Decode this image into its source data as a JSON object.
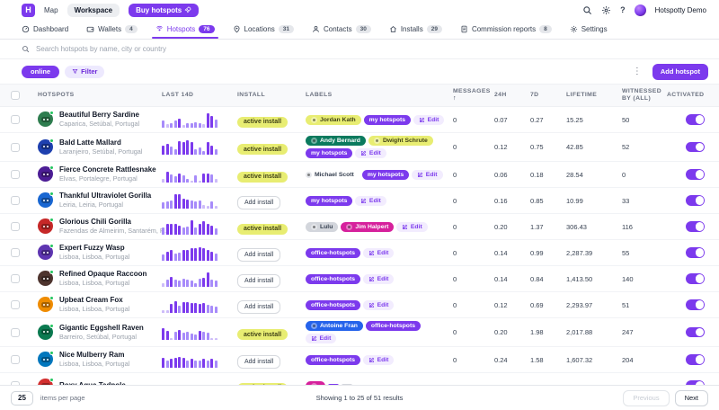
{
  "topbar": {
    "logo": "H",
    "map": "Map",
    "workspace": "Workspace",
    "buy_hotspots": "Buy hotspots",
    "user": "Hotspotty Demo",
    "help": "?"
  },
  "nav": {
    "items": [
      {
        "label": "Dashboard",
        "icon": "dashboard-icon",
        "badge": null,
        "active": false
      },
      {
        "label": "Wallets",
        "icon": "wallet-icon",
        "badge": "4",
        "active": false
      },
      {
        "label": "Hotspots",
        "icon": "hotspot-icon",
        "badge": "76",
        "active": true
      },
      {
        "label": "Locations",
        "icon": "location-icon",
        "badge": "31",
        "active": false
      },
      {
        "label": "Contacts",
        "icon": "contact-icon",
        "badge": "30",
        "active": false
      },
      {
        "label": "Installs",
        "icon": "install-icon",
        "badge": "29",
        "active": false
      },
      {
        "label": "Commission reports",
        "icon": "report-icon",
        "badge": "8",
        "active": false
      },
      {
        "label": "Settings",
        "icon": "settings-icon",
        "badge": null,
        "active": false
      }
    ]
  },
  "search": {
    "placeholder": "Search hotspots by name, city or country"
  },
  "filters": {
    "online_label": "online",
    "filter_label": "Filter",
    "add_hotspot_label": "Add hotspot",
    "kebab": "⋮"
  },
  "table": {
    "columns": [
      "HOTSPOTS",
      "LAST 14D",
      "INSTALL",
      "LABELS",
      "MESSAGES",
      "24H",
      "7D",
      "LIFETIME",
      "WITNESSED BY (ALL)",
      "ACTIVATED"
    ],
    "sort_column": "MESSAGES",
    "sort_arrow": "↑",
    "edit_label": "Edit",
    "install_active_label": "active install",
    "install_add_label": "Add install",
    "rows": [
      {
        "name": "Beautiful Berry Sardine",
        "location": "Caparica, Setúbal, Portugal",
        "avatar_color": "#2e7d4f",
        "bars": [
          0.45,
          0.2,
          0.3,
          0.45,
          0.62,
          0.15,
          0.3,
          0.28,
          0.35,
          0.3,
          0.2,
          1,
          0.8,
          0.55
        ],
        "install": "active",
        "labels": [
          {
            "text": "Jordan Kath",
            "color": "yellow",
            "contact": true
          },
          {
            "text": "my hotspots",
            "color": "purple",
            "contact": false
          }
        ],
        "edit": true,
        "messages": "0",
        "h24": "0.07",
        "d7": "0.27",
        "lifetime": "15.25",
        "witnessed": "50",
        "activated": true
      },
      {
        "name": "Bald Latte Mallard",
        "location": "Laranjeiro, Setúbal, Portugal",
        "avatar_color": "#1e40af",
        "bars": [
          0.65,
          0.75,
          0.55,
          0.4,
          0.95,
          0.9,
          1,
          0.9,
          0.35,
          0.5,
          0.25,
          0.85,
          0.6,
          0.35
        ],
        "install": "active",
        "labels": [
          {
            "text": "Andy Bernard",
            "color": "green",
            "contact": true
          },
          {
            "text": "Dwight Schrute",
            "color": "yellow",
            "contact": true
          },
          {
            "text": "my hotspots",
            "color": "purple",
            "contact": false
          }
        ],
        "edit": true,
        "messages": "0",
        "h24": "0.12",
        "d7": "0.75",
        "lifetime": "42.85",
        "witnessed": "52",
        "activated": true
      },
      {
        "name": "Fierce Concrete Rattlesnake",
        "location": "Elvas, Portalegre, Portugal",
        "avatar_color": "#4c1d95",
        "bars": [
          0.2,
          0.7,
          0.55,
          0.4,
          0.6,
          0.45,
          0.25,
          0.1,
          0.45,
          0.1,
          0.6,
          0.6,
          0.55,
          0.2
        ],
        "install": "active",
        "labels": [
          {
            "text": "Michael Scott",
            "color": "plain",
            "contact": true
          },
          {
            "text": "my hotspots",
            "color": "purple",
            "contact": false
          }
        ],
        "edit": true,
        "messages": "0",
        "h24": "0.06",
        "d7": "0.18",
        "lifetime": "28.54",
        "witnessed": "0",
        "activated": true
      },
      {
        "name": "Thankful Ultraviolet Gorilla",
        "location": "Leiria, Leiria, Portugal",
        "avatar_color": "#1967d2",
        "bars": [
          0.4,
          0.45,
          0.55,
          1,
          0.95,
          0.65,
          0.6,
          0.55,
          0.5,
          0.55,
          0.2,
          0.15,
          0.5,
          0.15
        ],
        "install": "add",
        "labels": [
          {
            "text": "my hotspots",
            "color": "purple",
            "contact": false
          }
        ],
        "edit": true,
        "messages": "0",
        "h24": "0.16",
        "d7": "0.85",
        "lifetime": "10.99",
        "witnessed": "33",
        "activated": true
      },
      {
        "name": "Glorious Chili Gorilla",
        "location": "Fazendas de Almeirim, Santarém, P...",
        "avatar_color": "#c62828",
        "bars": [
          0.45,
          0.75,
          0.75,
          0.7,
          0.6,
          0.45,
          0.55,
          1,
          0.45,
          0.75,
          0.9,
          0.75,
          0.6,
          0.4
        ],
        "install": "active",
        "labels": [
          {
            "text": "Lulu",
            "color": "gray",
            "contact": true
          },
          {
            "text": "Jim Halpert",
            "color": "pink",
            "contact": true
          }
        ],
        "edit": true,
        "messages": "0",
        "h24": "0.20",
        "d7": "1.37",
        "lifetime": "306.43",
        "witnessed": "116",
        "activated": true
      },
      {
        "name": "Expert Fuzzy Wasp",
        "location": "Lisboa, Lisboa, Portugal",
        "avatar_color": "#5e35b1",
        "bars": [
          0.4,
          0.6,
          0.75,
          0.45,
          0.55,
          0.75,
          0.75,
          0.85,
          0.85,
          0.9,
          0.85,
          0.75,
          0.6,
          0.45
        ],
        "install": "add",
        "labels": [
          {
            "text": "office-hotspots",
            "color": "purple",
            "contact": false
          }
        ],
        "edit": true,
        "messages": "0",
        "h24": "0.14",
        "d7": "0.99",
        "lifetime": "2,287.39",
        "witnessed": "55",
        "activated": true
      },
      {
        "name": "Refined Opaque Raccoon",
        "location": "Lisboa, Lisboa, Portugal",
        "avatar_color": "#4e342e",
        "bars": [
          0.2,
          0.5,
          0.65,
          0.45,
          0.4,
          0.55,
          0.5,
          0.4,
          0.25,
          0.55,
          0.6,
          1,
          0.5,
          0.4
        ],
        "install": "add",
        "labels": [
          {
            "text": "office-hotspots",
            "color": "purple",
            "contact": false
          }
        ],
        "edit": true,
        "messages": "0",
        "h24": "0.14",
        "d7": "0.84",
        "lifetime": "1,413.50",
        "witnessed": "140",
        "activated": true
      },
      {
        "name": "Upbeat Cream Fox",
        "location": "Lisboa, Lisboa, Portugal",
        "avatar_color": "#ef8c00",
        "bars": [
          0.15,
          0.15,
          0.6,
          0.8,
          0.5,
          0.7,
          0.7,
          0.65,
          0.65,
          0.6,
          0.65,
          0.55,
          0.5,
          0.4
        ],
        "install": "add",
        "labels": [
          {
            "text": "office-hotspots",
            "color": "purple",
            "contact": false
          }
        ],
        "edit": true,
        "messages": "0",
        "h24": "0.12",
        "d7": "0.69",
        "lifetime": "2,293.97",
        "witnessed": "51",
        "activated": true
      },
      {
        "name": "Gigantic Eggshell Raven",
        "location": "Barreiro, Setúbal, Portugal",
        "avatar_color": "#0b7a50",
        "bars": [
          0.8,
          0.65,
          0.15,
          0.55,
          0.7,
          0.5,
          0.55,
          0.45,
          0.35,
          0.6,
          0.55,
          0.5,
          0.15,
          0.15
        ],
        "install": "active",
        "labels": [
          {
            "text": "Antoine Fran",
            "color": "blue",
            "contact": true
          },
          {
            "text": "office-hotspots",
            "color": "purple",
            "contact": false
          }
        ],
        "edit": true,
        "messages": "0",
        "h24": "0.20",
        "d7": "1.98",
        "lifetime": "2,017.88",
        "witnessed": "247",
        "activated": true
      },
      {
        "name": "Nice Mulberry Ram",
        "location": "Lisboa, Lisboa, Portugal",
        "avatar_color": "#0277bd",
        "bars": [
          0.65,
          0.5,
          0.6,
          0.65,
          0.7,
          0.65,
          0.5,
          0.6,
          0.5,
          0.45,
          0.6,
          0.5,
          0.6,
          0.5
        ],
        "install": "add",
        "labels": [
          {
            "text": "office-hotspots",
            "color": "purple",
            "contact": false
          }
        ],
        "edit": true,
        "messages": "0",
        "h24": "0.24",
        "d7": "1.58",
        "lifetime": "1,607.32",
        "witnessed": "204",
        "activated": true
      },
      {
        "name": "Roxy Aqua Tadpole",
        "location": "",
        "avatar_color": "#d32f2f",
        "bars": [
          0.5,
          0.4,
          0.55,
          0.45,
          0.5,
          0.45,
          0.5,
          0.4,
          0.45,
          0.5,
          0.45,
          0.5,
          0.4,
          0.45
        ],
        "install": "active",
        "labels": [
          {
            "text": "",
            "color": "pink",
            "contact": true
          },
          {
            "text": "",
            "color": "purple",
            "contact": false
          },
          {
            "text": "",
            "color": "gray",
            "contact": false
          }
        ],
        "edit": false,
        "messages": "",
        "h24": "",
        "d7": "",
        "lifetime": "",
        "witnessed": "",
        "activated": true
      }
    ]
  },
  "footer": {
    "per_page": "25",
    "per_page_label": "items per page",
    "summary": "Showing 1 to 25 of 51 results",
    "previous": "Previous",
    "next": "Next"
  },
  "colors": {
    "accent": "#7c3aed",
    "status_online": "#22c55e",
    "bar_palette": [
      "#cdbcf9",
      "#a78bfa",
      "#7c3aed"
    ],
    "label_colors": {
      "yellow": {
        "bg": "#e8ed72",
        "fg": "#3f4116"
      },
      "green": {
        "bg": "#0b7a5e",
        "fg": "#ffffff"
      },
      "purple": {
        "bg": "#7c3aed",
        "fg": "#ffffff"
      },
      "pink": {
        "bg": "#d6219c",
        "fg": "#ffffff"
      },
      "blue": {
        "bg": "#2563eb",
        "fg": "#ffffff"
      },
      "gray": {
        "bg": "#d3d6dc",
        "fg": "#374151"
      },
      "plain": {
        "bg": "transparent",
        "fg": "#374151"
      }
    }
  }
}
